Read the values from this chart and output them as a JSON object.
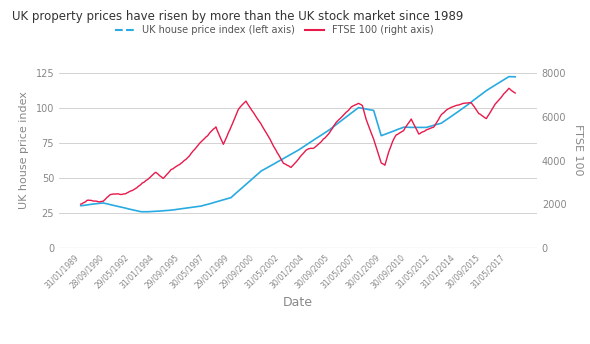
{
  "title": "UK property prices have risen by more than the UK stock market since 1989",
  "legend_labels": [
    "UK house price index (left axis)",
    "FTSE 100 (right axis)"
  ],
  "xlabel": "Date",
  "ylabel_left": "UK house price index",
  "ylabel_right": "FTSE 100",
  "hpi_color": "#29ABE2",
  "ftse_color": "#E8194B",
  "background_color": "#FFFFFF",
  "grid_color": "#CCCCCC",
  "left_ylim": [
    0,
    140
  ],
  "right_ylim": [
    0,
    9000
  ],
  "left_yticks": [
    0,
    25,
    50,
    75,
    100,
    125
  ],
  "right_yticks": [
    0,
    2000,
    4000,
    6000,
    8000
  ],
  "tick_label_color": "#888888",
  "axis_color": "#888888"
}
